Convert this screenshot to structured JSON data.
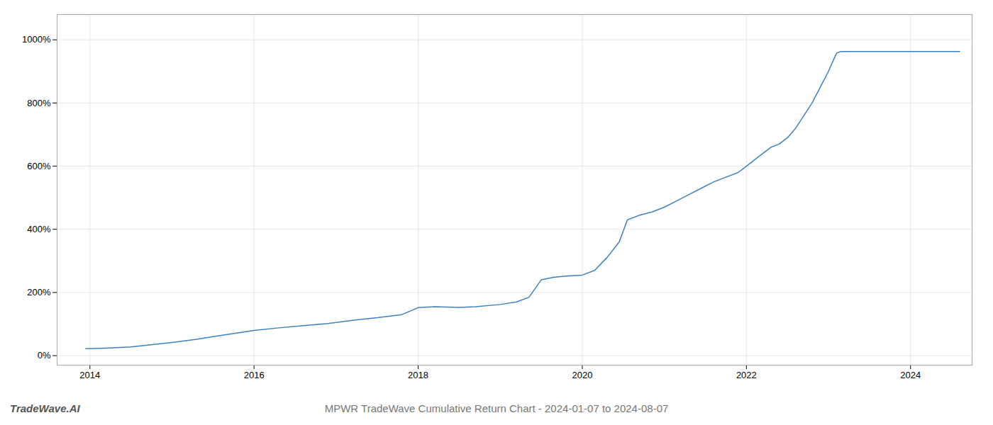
{
  "chart_data": {
    "type": "line",
    "title": "MPWR TradeWave Cumulative Return Chart - 2024-01-07 to 2024-08-07",
    "annotations": [
      "TradeWave.AI"
    ],
    "color": "#3a82c4",
    "grid": true,
    "xlim": [
      2013.6,
      2024.75
    ],
    "ylim": [
      -30,
      1080
    ],
    "xticks": [
      2014,
      2016,
      2018,
      2020,
      2022,
      2024
    ],
    "yticks": [
      {
        "value": 0,
        "label": "0%"
      },
      {
        "value": 200,
        "label": "200%"
      },
      {
        "value": 400,
        "label": "400%"
      },
      {
        "value": 600,
        "label": "600%"
      },
      {
        "value": 800,
        "label": "800%"
      },
      {
        "value": 1000,
        "label": "1000%"
      }
    ],
    "x": [
      2013.95,
      2014.2,
      2014.5,
      2015.0,
      2015.3,
      2015.5,
      2015.8,
      2016.0,
      2016.3,
      2016.6,
      2016.9,
      2017.2,
      2017.5,
      2017.8,
      2018.0,
      2018.2,
      2018.5,
      2018.7,
      2019.0,
      2019.2,
      2019.35,
      2019.5,
      2019.65,
      2019.8,
      2020.0,
      2020.15,
      2020.3,
      2020.45,
      2020.55,
      2020.7,
      2020.85,
      2021.0,
      2021.15,
      2021.3,
      2021.45,
      2021.6,
      2021.75,
      2021.9,
      2022.0,
      2022.1,
      2022.2,
      2022.3,
      2022.4,
      2022.5,
      2022.6,
      2022.7,
      2022.8,
      2022.9,
      2023.0,
      2023.05,
      2023.1,
      2023.15,
      2023.3,
      2023.5,
      2023.7,
      2023.9,
      2024.0,
      2024.1,
      2024.2,
      2024.3,
      2024.45,
      2024.6
    ],
    "values": [
      22,
      24,
      28,
      42,
      52,
      60,
      72,
      80,
      88,
      95,
      102,
      112,
      120,
      130,
      152,
      155,
      153,
      155,
      162,
      170,
      185,
      240,
      248,
      252,
      255,
      270,
      310,
      360,
      430,
      445,
      455,
      470,
      490,
      510,
      530,
      550,
      565,
      580,
      600,
      620,
      640,
      660,
      670,
      690,
      720,
      760,
      800,
      850,
      900,
      930,
      958,
      963,
      963,
      963,
      963,
      963,
      963,
      963,
      963,
      963,
      963,
      963
    ]
  }
}
